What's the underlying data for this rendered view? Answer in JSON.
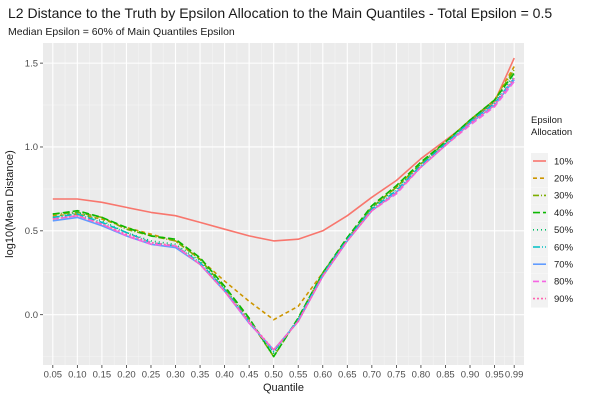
{
  "chart_data": {
    "type": "line",
    "title": "L2 Distance to the Truth by Epsilon Allocation to the Main Quantiles - Total Epsilon = 0.5",
    "subtitle": "Median Epsilon = 60% of Main Quantiles Epsilon",
    "xlabel": "Quantile",
    "ylabel": "log10(Mean Distance)",
    "xlim": [
      0.03,
      1.01
    ],
    "ylim": [
      -0.3,
      1.62
    ],
    "grid": true,
    "legend_position": "right",
    "legend_title": "Epsilon\nAllocation",
    "x": [
      0.05,
      0.1,
      0.15,
      0.2,
      0.25,
      0.3,
      0.35,
      0.4,
      0.45,
      0.5,
      0.55,
      0.6,
      0.65,
      0.7,
      0.75,
      0.8,
      0.85,
      0.9,
      0.95,
      0.99
    ],
    "x_ticks": [
      "0.05",
      "0.10",
      "0.15",
      "0.20",
      "0.25",
      "0.30",
      "0.35",
      "0.40",
      "0.45",
      "0.50",
      "0.55",
      "0.60",
      "0.65",
      "0.70",
      "0.75",
      "0.80",
      "0.85",
      "0.90",
      "0.95",
      "0.99"
    ],
    "y_ticks": [
      0.0,
      0.5,
      1.0,
      1.5
    ],
    "y_tick_labels": [
      "0.0",
      "0.5",
      "1.0",
      "1.5"
    ],
    "series": [
      {
        "name": "10%",
        "color": "#F8766D",
        "dash": "solid",
        "values": [
          0.69,
          0.69,
          0.67,
          0.64,
          0.61,
          0.59,
          0.55,
          0.51,
          0.47,
          0.44,
          0.45,
          0.5,
          0.59,
          0.7,
          0.8,
          0.93,
          1.04,
          1.15,
          1.27,
          1.53
        ]
      },
      {
        "name": "20%",
        "color": "#CD9600",
        "dash": "4,3",
        "values": [
          0.59,
          0.6,
          0.57,
          0.52,
          0.48,
          0.44,
          0.33,
          0.2,
          0.08,
          -0.03,
          0.05,
          0.25,
          0.45,
          0.64,
          0.76,
          0.9,
          1.03,
          1.16,
          1.28,
          1.48
        ]
      },
      {
        "name": "30%",
        "color": "#7CAE00",
        "dash": "6,2,1,2",
        "values": [
          0.6,
          0.61,
          0.58,
          0.51,
          0.47,
          0.44,
          0.33,
          0.16,
          -0.03,
          -0.25,
          -0.02,
          0.25,
          0.45,
          0.64,
          0.76,
          0.9,
          1.03,
          1.16,
          1.28,
          1.46
        ]
      },
      {
        "name": "40%",
        "color": "#0CB702",
        "dash": "7,3",
        "values": [
          0.6,
          0.62,
          0.58,
          0.52,
          0.47,
          0.45,
          0.34,
          0.17,
          -0.02,
          -0.25,
          -0.02,
          0.25,
          0.46,
          0.65,
          0.77,
          0.91,
          1.03,
          1.16,
          1.28,
          1.44
        ]
      },
      {
        "name": "50%",
        "color": "#00BE67",
        "dash": "1,3",
        "values": [
          0.58,
          0.61,
          0.56,
          0.49,
          0.44,
          0.42,
          0.32,
          0.15,
          -0.04,
          -0.23,
          -0.03,
          0.24,
          0.45,
          0.64,
          0.75,
          0.9,
          1.02,
          1.15,
          1.27,
          1.43
        ]
      },
      {
        "name": "60%",
        "color": "#00BFC4",
        "dash": "7,2,1,2",
        "values": [
          0.58,
          0.6,
          0.55,
          0.49,
          0.43,
          0.41,
          0.31,
          0.15,
          -0.04,
          -0.22,
          -0.03,
          0.24,
          0.45,
          0.63,
          0.74,
          0.89,
          1.02,
          1.15,
          1.26,
          1.41
        ]
      },
      {
        "name": "70%",
        "color": "#619CFF",
        "dash": "solid",
        "values": [
          0.56,
          0.58,
          0.53,
          0.47,
          0.42,
          0.4,
          0.3,
          0.14,
          -0.05,
          -0.21,
          -0.04,
          0.23,
          0.44,
          0.62,
          0.73,
          0.88,
          1.01,
          1.14,
          1.25,
          1.4
        ]
      },
      {
        "name": "80%",
        "color": "#F564E3",
        "dash": "6,3",
        "values": [
          0.57,
          0.59,
          0.54,
          0.47,
          0.42,
          0.41,
          0.3,
          0.14,
          -0.05,
          -0.21,
          -0.04,
          0.23,
          0.44,
          0.62,
          0.72,
          0.88,
          1.01,
          1.13,
          1.24,
          1.39
        ]
      },
      {
        "name": "90%",
        "color": "#FF64B0",
        "dash": "2,2",
        "values": [
          0.57,
          0.59,
          0.54,
          0.48,
          0.43,
          0.41,
          0.3,
          0.14,
          -0.04,
          -0.21,
          -0.04,
          0.23,
          0.44,
          0.62,
          0.73,
          0.88,
          1.01,
          1.14,
          1.25,
          1.41
        ]
      }
    ]
  }
}
